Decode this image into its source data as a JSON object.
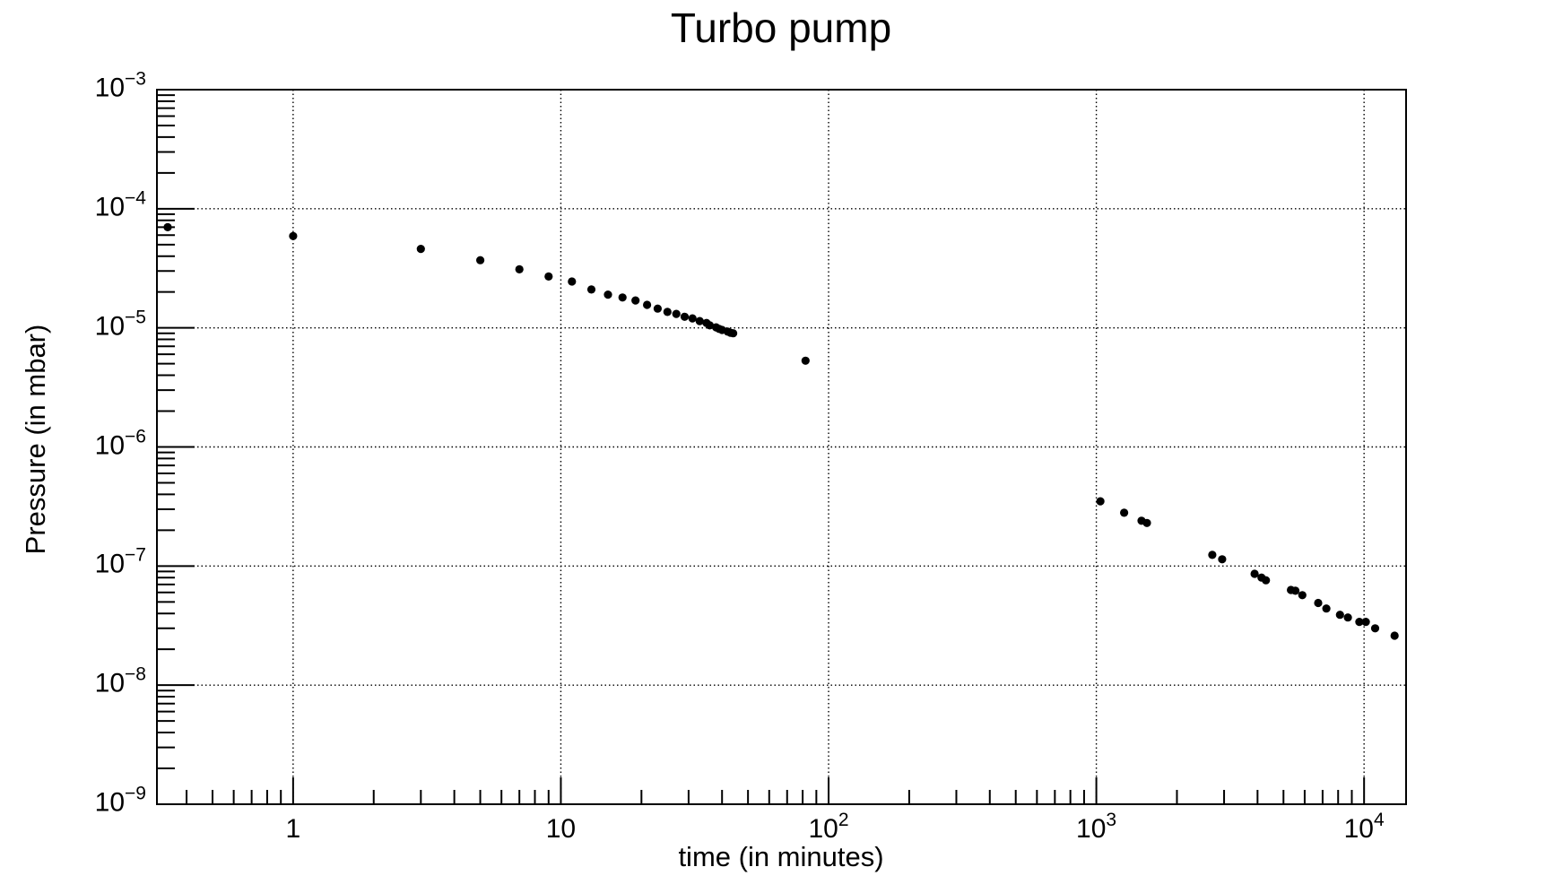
{
  "page": {
    "background": "#ffffff"
  },
  "colors": {
    "axis": "#000000",
    "grid": "#000000",
    "text": "#000000",
    "marker": "#000000"
  },
  "chart_data": {
    "type": "scatter",
    "title": "Turbo pump",
    "xlabel": "time (in minutes)",
    "ylabel": "Pressure (in mbar)",
    "x_scale": "log",
    "y_scale": "log",
    "xlim": [
      0.31,
      14350
    ],
    "ylim": [
      1e-09,
      0.001
    ],
    "grid": true,
    "legend_position": "none",
    "marker": {
      "shape": "circle",
      "color": "#000000",
      "radius_px": 4.6
    },
    "x_ticks": [
      {
        "value": 1,
        "base": "1",
        "exp": ""
      },
      {
        "value": 10,
        "base": "10",
        "exp": ""
      },
      {
        "value": 100,
        "base": "10",
        "exp": "2"
      },
      {
        "value": 1000,
        "base": "10",
        "exp": "3"
      },
      {
        "value": 10000,
        "base": "10",
        "exp": "4"
      }
    ],
    "y_ticks": [
      {
        "value": 0.001,
        "base": "10",
        "exp": "−3"
      },
      {
        "value": 0.0001,
        "base": "10",
        "exp": "−4"
      },
      {
        "value": 1e-05,
        "base": "10",
        "exp": "−5"
      },
      {
        "value": 1e-06,
        "base": "10",
        "exp": "−6"
      },
      {
        "value": 1e-07,
        "base": "10",
        "exp": "−7"
      },
      {
        "value": 1e-08,
        "base": "10",
        "exp": "−8"
      },
      {
        "value": 1e-09,
        "base": "10",
        "exp": "−9"
      }
    ],
    "series": [
      {
        "name": "pressure",
        "points": [
          [
            0.34,
            7e-05
          ],
          [
            1,
            5.9e-05
          ],
          [
            3,
            4.6e-05
          ],
          [
            5,
            3.7e-05
          ],
          [
            7,
            3.1e-05
          ],
          [
            9,
            2.7e-05
          ],
          [
            11,
            2.45e-05
          ],
          [
            13,
            2.1e-05
          ],
          [
            15,
            1.9e-05
          ],
          [
            17,
            1.8e-05
          ],
          [
            19,
            1.7e-05
          ],
          [
            21,
            1.56e-05
          ],
          [
            23,
            1.45e-05
          ],
          [
            25,
            1.36e-05
          ],
          [
            27,
            1.31e-05
          ],
          [
            29,
            1.24e-05
          ],
          [
            31,
            1.2e-05
          ],
          [
            33,
            1.14e-05
          ],
          [
            35,
            1.1e-05
          ],
          [
            36,
            1.05e-05
          ],
          [
            38,
            1.01e-05
          ],
          [
            39,
            9.8e-06
          ],
          [
            40,
            9.6e-06
          ],
          [
            42,
            9.3e-06
          ],
          [
            43,
            9.1e-06
          ],
          [
            44,
            9e-06
          ],
          [
            82,
            5.3e-06
          ],
          [
            1035,
            3.5e-07
          ],
          [
            1270,
            2.8e-07
          ],
          [
            1475,
            2.4e-07
          ],
          [
            1545,
            2.3e-07
          ],
          [
            2710,
            1.24e-07
          ],
          [
            2950,
            1.14e-07
          ],
          [
            3900,
            8.6e-08
          ],
          [
            4140,
            8e-08
          ],
          [
            4300,
            7.6e-08
          ],
          [
            5330,
            6.3e-08
          ],
          [
            5540,
            6.2e-08
          ],
          [
            5880,
            5.7e-08
          ],
          [
            6740,
            4.9e-08
          ],
          [
            7230,
            4.4e-08
          ],
          [
            8130,
            3.9e-08
          ],
          [
            8700,
            3.7e-08
          ],
          [
            9600,
            3.4e-08
          ],
          [
            10150,
            3.4e-08
          ],
          [
            11000,
            3e-08
          ],
          [
            13000,
            2.6e-08
          ]
        ]
      }
    ]
  }
}
